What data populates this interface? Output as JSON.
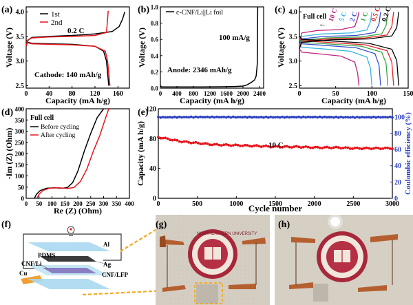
{
  "panel_labels": {
    "a": "(a)",
    "b": "(b)",
    "c": "(c)",
    "d": "(d)",
    "e": "(e)",
    "f": "(f)",
    "g": "(g)",
    "h": "(h)"
  },
  "panel_a": {
    "xlabel": "Capacity (mA h/g)",
    "ylabel": "Voltage (V)",
    "xticks": [
      "0",
      "40",
      "80",
      "120",
      "160"
    ],
    "yticks": [
      "2.5",
      "3.0",
      "3.5",
      "4.0"
    ],
    "legend": [
      "1st",
      "2nd"
    ],
    "rate": "0.2 C",
    "note": "Cathode: 140 mAh/g",
    "colors": [
      "#000000",
      "#e8141b"
    ]
  },
  "panel_b": {
    "xlabel": "Capacity (mA h/g)",
    "ylabel": "Voltage (V)",
    "xticks": [
      "0",
      "400",
      "800",
      "1200",
      "1600",
      "2000",
      "2400"
    ],
    "yticks": [
      "0.0",
      "0.2",
      "0.4",
      "0.6",
      "0.8",
      "1.0"
    ],
    "legend": "c-CNF/Li||Li foil",
    "rate": "100 mA/g",
    "note": "Anode: 2346 mAh/g"
  },
  "panel_c": {
    "xlabel": "Capacity (mA h/g)",
    "ylabel": "Voltage (V)",
    "xticks": [
      "0",
      "50",
      "100",
      "150"
    ],
    "yticks": [
      "2.5",
      "3.0",
      "3.5",
      "4.0"
    ],
    "title": "Full cell",
    "rates": [
      "10 C",
      "5 C",
      "2 C",
      "1 C",
      "0.5 C",
      "0.2 C"
    ],
    "colors": [
      "#c0267e",
      "#36b6e0",
      "#3a4fd0",
      "#3aa64a",
      "#e82020",
      "#000000"
    ]
  },
  "panel_d": {
    "xlabel": "Re (Z) (Ohm)",
    "ylabel": "-Im (Z) (Ohm)",
    "xticks": [
      "0",
      "50",
      "100",
      "150",
      "200",
      "250",
      "300",
      "350",
      "400"
    ],
    "yticks": [
      "0",
      "50",
      "100",
      "150",
      "200",
      "250",
      "300",
      "350",
      "400"
    ],
    "title": "Full cell",
    "legend": [
      "Before cycling",
      "After cycling"
    ],
    "colors": [
      "#000000",
      "#e8141b"
    ]
  },
  "panel_e": {
    "xlabel": "Cycle number",
    "ylabel_left": "Capacity (mA h/g)",
    "ylabel_right": "Coulombic efficiency (%)",
    "xticks": [
      "0",
      "500",
      "1000",
      "1500",
      "2000",
      "2500",
      "3000"
    ],
    "yticks_left": [
      "0",
      "40",
      "80",
      "120"
    ],
    "yticks_right": [
      "0",
      "20",
      "40",
      "60",
      "80",
      "100"
    ],
    "rate": "10 C",
    "colors": {
      "capacity": "#e8141b",
      "efficiency": "#2a3fbf"
    }
  },
  "panel_f": {
    "labels": {
      "al": "Al",
      "pdms": "PDMS",
      "cnf_li": "CNF/Li",
      "ag": "Ag",
      "cu": "Cu",
      "cnf_lfp": "CNF/LFP"
    }
  },
  "panel_g": {
    "seal_text": "NORTHEASTERN UNIVERSITY"
  },
  "chart_data": [
    {
      "panel": "a",
      "type": "line",
      "title": "",
      "xlabel": "Capacity (mA h/g)",
      "ylabel": "Voltage (V)",
      "xlim": [
        0,
        180
      ],
      "ylim": [
        2.45,
        4.1
      ],
      "series": [
        {
          "name": "1st",
          "segments": [
            {
              "x": [
                0,
                3,
                10,
                40,
                80,
                120,
                150,
                162,
                168,
                172
              ],
              "y": [
                3.3,
                3.42,
                3.48,
                3.5,
                3.52,
                3.55,
                3.6,
                3.7,
                3.85,
                4.0
              ]
            },
            {
              "x": [
                0,
                3,
                10,
                40,
                80,
                120,
                135,
                140,
                144
              ],
              "y": [
                3.42,
                3.38,
                3.36,
                3.35,
                3.34,
                3.3,
                3.2,
                3.0,
                2.5
              ]
            }
          ]
        },
        {
          "name": "2nd",
          "segments": [
            {
              "x": [
                0,
                3,
                10,
                40,
                80,
                120,
                140,
                142,
                143
              ],
              "y": [
                3.3,
                3.43,
                3.47,
                3.49,
                3.5,
                3.52,
                3.58,
                3.85,
                4.02
              ]
            },
            {
              "x": [
                0,
                3,
                10,
                40,
                80,
                120,
                138,
                142,
                146
              ],
              "y": [
                3.4,
                3.37,
                3.35,
                3.34,
                3.33,
                3.3,
                3.2,
                3.0,
                2.5
              ]
            }
          ]
        }
      ]
    },
    {
      "panel": "b",
      "type": "line",
      "title": "",
      "xlabel": "Capacity (mA h/g)",
      "ylabel": "Voltage (V)",
      "xlim": [
        0,
        2500
      ],
      "ylim": [
        0,
        1.0
      ],
      "series": [
        {
          "name": "c-CNF/Li||Li foil",
          "x": [
            0,
            30,
            100,
            500,
            1000,
            1500,
            1800,
            2000,
            2100,
            2200,
            2280,
            2320,
            2346,
            2350,
            2356
          ],
          "y": [
            0.03,
            0.015,
            0.014,
            0.014,
            0.015,
            0.017,
            0.02,
            0.025,
            0.04,
            0.07,
            0.1,
            0.15,
            0.3,
            0.6,
            1.0
          ]
        }
      ]
    },
    {
      "panel": "c",
      "type": "line",
      "title": "Full cell",
      "xlabel": "Capacity (mA h/g)",
      "ylabel": "Voltage (V)",
      "xlim": [
        0,
        150
      ],
      "ylim": [
        2.45,
        4.1
      ],
      "series": [
        {
          "name": "10 C",
          "cap": 82,
          "charge_top": 3.62,
          "disch_bot": 3.1
        },
        {
          "name": "5 C",
          "cap": 100,
          "charge_top": 3.55,
          "disch_bot": 3.2
        },
        {
          "name": "2 C",
          "cap": 112,
          "charge_top": 3.5,
          "disch_bot": 3.27
        },
        {
          "name": "1 C",
          "cap": 122,
          "charge_top": 3.47,
          "disch_bot": 3.3
        },
        {
          "name": "0.5 C",
          "cap": 130,
          "charge_top": 3.45,
          "disch_bot": 3.33
        },
        {
          "name": "0.2 C",
          "cap": 137,
          "charge_top": 3.43,
          "disch_bot": 3.36
        }
      ]
    },
    {
      "panel": "d",
      "type": "line",
      "title": "Full cell",
      "xlabel": "Re (Z) (Ohm)",
      "ylabel": "-Im (Z) (Ohm)",
      "xlim": [
        0,
        400
      ],
      "ylim": [
        0,
        400
      ],
      "series": [
        {
          "name": "Before cycling",
          "x": [
            32,
            40,
            55,
            80,
            110,
            140,
            160,
            180,
            200,
            225,
            250,
            275,
            300
          ],
          "y": [
            0,
            18,
            35,
            45,
            47,
            45,
            48,
            70,
            120,
            210,
            290,
            360,
            400
          ]
        },
        {
          "name": "After cycling",
          "x": [
            42,
            50,
            65,
            90,
            125,
            160,
            185,
            210,
            235,
            260,
            285,
            305,
            320
          ],
          "y": [
            0,
            18,
            35,
            45,
            47,
            44,
            48,
            75,
            130,
            210,
            280,
            350,
            400
          ]
        }
      ]
    },
    {
      "panel": "e",
      "type": "scatter",
      "title": "",
      "xlabel": "Cycle number",
      "ylabel": "Capacity (mA h/g)",
      "ylabel_right": "Coulombic efficiency (%)",
      "xlim": [
        0,
        3000
      ],
      "ylim": [
        0,
        120
      ],
      "ylim_right": [
        0,
        110
      ],
      "series": [
        {
          "name": "Capacity",
          "x": [
            0,
            100,
            200,
            300,
            500,
            700,
            1000,
            1300,
            1500,
            1800,
            2000,
            2300,
            2500,
            2800,
            3000
          ],
          "y": [
            82,
            80,
            78,
            76,
            74,
            72,
            71,
            70,
            69,
            69,
            68,
            68,
            67,
            67,
            67
          ]
        },
        {
          "name": "Coulombic efficiency",
          "x": [
            0,
            500,
            1000,
            1500,
            2000,
            2500,
            3000
          ],
          "y": [
            99.5,
            99.8,
            99.7,
            99.6,
            99.8,
            99.5,
            99.7
          ]
        }
      ]
    }
  ]
}
